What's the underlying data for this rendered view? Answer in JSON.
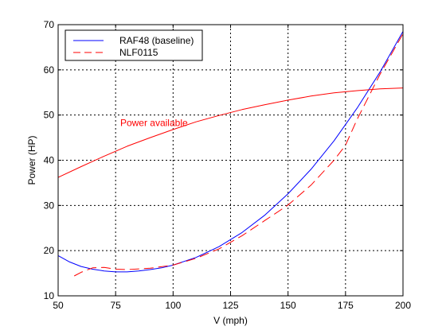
{
  "chart_data": {
    "type": "line",
    "title": "",
    "xlabel": "V (mph)",
    "ylabel": "Power (HP)",
    "xlim": [
      50,
      200
    ],
    "ylim": [
      10,
      70
    ],
    "xticks": [
      50,
      75,
      100,
      125,
      150,
      175,
      200
    ],
    "yticks": [
      10,
      20,
      30,
      40,
      50,
      60,
      70
    ],
    "grid": true,
    "legend_position": "top-left",
    "series": [
      {
        "name": "RAF48 (baseline)",
        "color": "#0000ff",
        "style": "solid",
        "x": [
          50,
          55,
          60,
          65,
          70,
          75,
          80,
          85,
          90,
          95,
          100,
          110,
          120,
          130,
          140,
          150,
          160,
          170,
          180,
          190,
          200
        ],
        "y": [
          18.9,
          17.5,
          16.5,
          15.9,
          15.5,
          15.3,
          15.3,
          15.5,
          15.8,
          16.2,
          16.8,
          18.5,
          20.9,
          24.0,
          27.9,
          32.6,
          38.0,
          44.3,
          51.5,
          59.5,
          68.5
        ]
      },
      {
        "name": "NLF0115",
        "color": "#ff0000",
        "style": "dashed",
        "x": [
          57,
          60,
          65,
          70,
          75,
          80,
          90,
          100,
          110,
          120,
          130,
          140,
          150,
          160,
          170,
          175,
          180,
          190,
          200
        ],
        "y": [
          14.4,
          15.2,
          16.2,
          16.3,
          15.9,
          15.8,
          16.1,
          16.8,
          18.3,
          20.4,
          23.3,
          26.7,
          30.1,
          34.5,
          40.0,
          43.3,
          49.0,
          59.0,
          68.0
        ]
      },
      {
        "name": "Power available",
        "color": "#ff0000",
        "style": "solid",
        "x": [
          50,
          60,
          70,
          80,
          90,
          100,
          110,
          120,
          130,
          140,
          150,
          160,
          170,
          180,
          190,
          200
        ],
        "y": [
          36.2,
          38.6,
          40.9,
          43.1,
          45.0,
          46.8,
          48.5,
          49.9,
          51.2,
          52.3,
          53.3,
          54.2,
          54.9,
          55.4,
          55.8,
          56.0
        ]
      }
    ],
    "annotations": [
      {
        "text": "Power available",
        "x": 77,
        "y": 47.6,
        "color": "#ff0000"
      }
    ]
  }
}
